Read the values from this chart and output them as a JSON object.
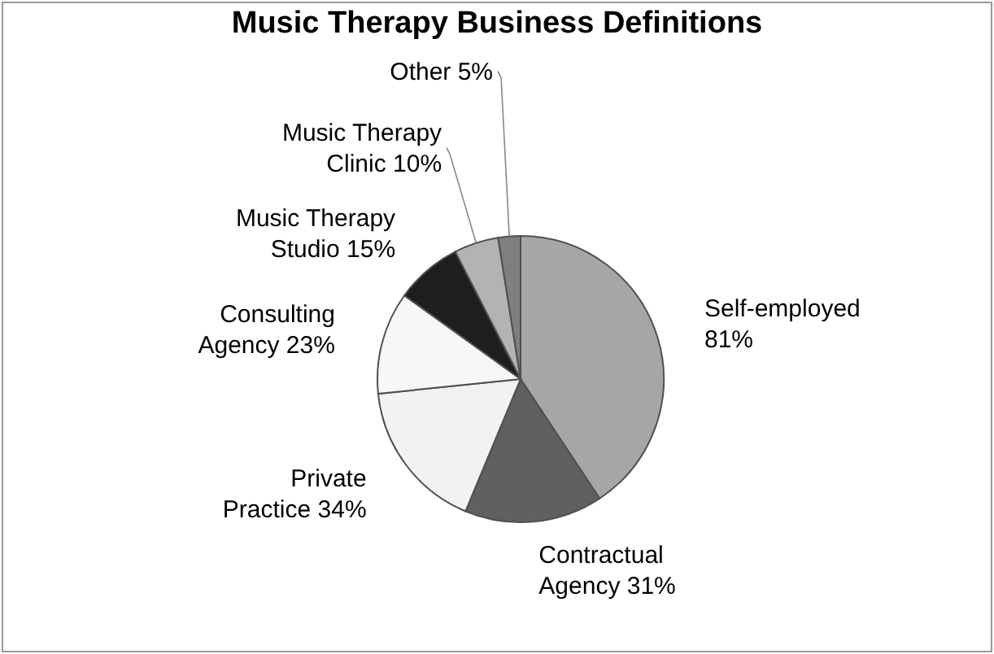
{
  "chart_data": {
    "type": "pie",
    "title": "Music Therapy Business Definitions",
    "categories": [
      "Self-employed",
      "Contractual Agency",
      "Private Practice",
      "Consulting Agency",
      "Music Therapy Studio",
      "Music Therapy Clinic",
      "Other"
    ],
    "values": [
      81,
      31,
      34,
      23,
      15,
      10,
      5
    ],
    "value_labels": [
      "81%",
      "31%",
      "34%",
      "23%",
      "15%",
      "10%",
      "5%"
    ],
    "colors": [
      "#a6a6a6",
      "#606060",
      "#f2f2f2",
      "#f7f7f7",
      "#1e1e1e",
      "#b3b3b3",
      "#7f7f7f"
    ],
    "legend": false
  }
}
